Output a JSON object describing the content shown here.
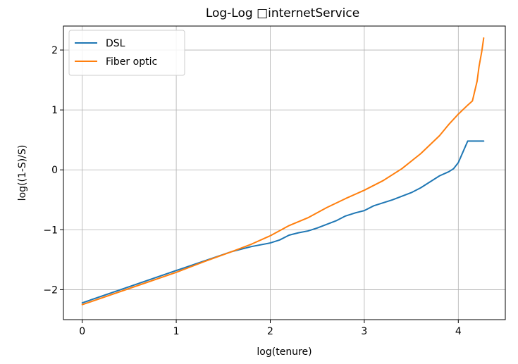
{
  "chart_data": {
    "type": "line",
    "title": "Log-Log □internetService",
    "xlabel": "log(tenure)",
    "ylabel": "log((1-S)/S)",
    "xlim": [
      -0.2,
      4.5
    ],
    "ylim": [
      -2.5,
      2.4
    ],
    "xticks": [
      0,
      1,
      2,
      3,
      4
    ],
    "yticks": [
      -2,
      -1,
      0,
      1,
      2
    ],
    "xtick_labels": [
      "0",
      "1",
      "2",
      "3",
      "4"
    ],
    "ytick_labels": [
      "−2",
      "−1",
      "0",
      "1",
      "2"
    ],
    "grid": true,
    "legend_position": "upper-left",
    "series": [
      {
        "name": "DSL",
        "color": "#1f77b4",
        "x": [
          0,
          0.5,
          1.0,
          1.3,
          1.6,
          1.8,
          2.0,
          2.1,
          2.2,
          2.3,
          2.4,
          2.5,
          2.6,
          2.7,
          2.8,
          2.9,
          3.0,
          3.1,
          3.2,
          3.3,
          3.4,
          3.5,
          3.6,
          3.7,
          3.8,
          3.9,
          3.95,
          4.0,
          4.05,
          4.1,
          4.27
        ],
        "y": [
          -2.22,
          -1.95,
          -1.68,
          -1.52,
          -1.36,
          -1.28,
          -1.22,
          -1.17,
          -1.09,
          -1.05,
          -1.02,
          -0.97,
          -0.91,
          -0.85,
          -0.77,
          -0.72,
          -0.68,
          -0.6,
          -0.55,
          -0.5,
          -0.44,
          -0.38,
          -0.3,
          -0.2,
          -0.1,
          -0.03,
          0.02,
          0.12,
          0.3,
          0.48,
          0.48
        ]
      },
      {
        "name": "Fiber optic",
        "color": "#ff7f0e",
        "x": [
          0,
          0.5,
          1.0,
          1.3,
          1.6,
          1.8,
          2.0,
          2.2,
          2.4,
          2.6,
          2.8,
          3.0,
          3.2,
          3.4,
          3.6,
          3.7,
          3.8,
          3.9,
          4.0,
          4.1,
          4.15,
          4.2,
          4.22,
          4.25,
          4.27
        ],
        "y": [
          -2.25,
          -1.98,
          -1.71,
          -1.53,
          -1.36,
          -1.24,
          -1.1,
          -0.93,
          -0.8,
          -0.63,
          -0.48,
          -0.34,
          -0.18,
          0.02,
          0.27,
          0.42,
          0.57,
          0.76,
          0.93,
          1.08,
          1.15,
          1.48,
          1.72,
          1.98,
          2.2
        ]
      }
    ]
  }
}
